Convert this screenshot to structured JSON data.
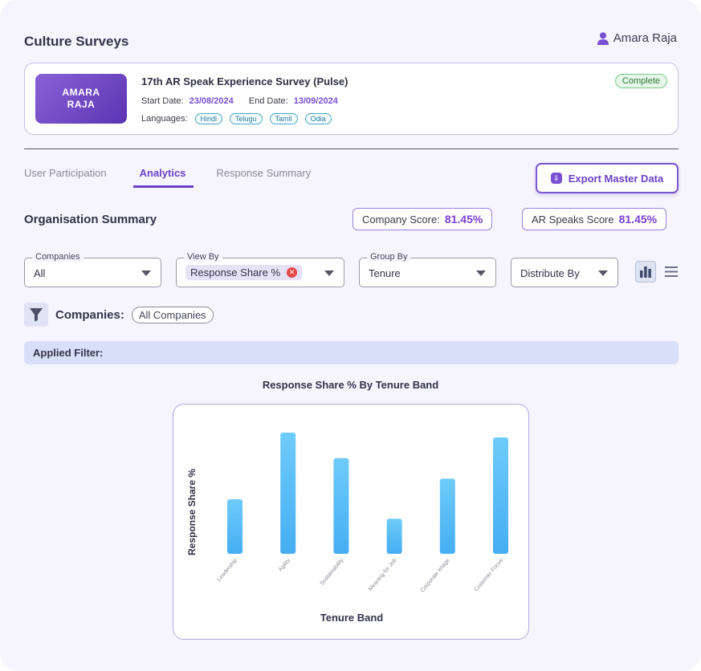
{
  "page": {
    "title": "Culture Surveys"
  },
  "user": {
    "name": "Amara Raja",
    "icon": "person-icon"
  },
  "survey": {
    "logo_line1": "AMARA",
    "logo_line2": "RAJA",
    "name": "17th AR Speak Experience Survey (Pulse)",
    "start_label": "Start Date:",
    "start_date": "23/08/2024",
    "end_label": "End Date:",
    "end_date": "13/09/2024",
    "languages_label": "Languages:",
    "languages": [
      "Hindi",
      "Telugu",
      "Tamil",
      "Odia"
    ],
    "status": "Complete"
  },
  "tabs": [
    {
      "label": "User Participation",
      "active": false
    },
    {
      "label": "Analytics",
      "active": true
    },
    {
      "label": "Response Summary",
      "active": false
    }
  ],
  "export_button": {
    "label": "Export Master Data",
    "icon": "download-icon"
  },
  "summary": {
    "title": "Organisation Summary",
    "company_score_label": "Company Score:",
    "company_score": "81.45%",
    "ar_score_label": "AR Speaks Score",
    "ar_score": "81.45%"
  },
  "filters": {
    "companies": {
      "label": "Companies",
      "value": "All"
    },
    "view_by": {
      "label": "View By",
      "value": "Response Share %"
    },
    "group_by": {
      "label": "Group By",
      "value": "Tenure"
    },
    "distribute_by": {
      "value": "Distribute By"
    }
  },
  "filter_row": {
    "label": "Companies:",
    "value": "All Companies"
  },
  "applied_filter": {
    "label": "Applied Filter:"
  },
  "colors": {
    "accent": "#6b3fc8",
    "bar_top": "#6fcbfb",
    "bar_bottom": "#45aef2"
  },
  "chart_data": {
    "type": "bar",
    "title": "Response Share % By Tenure Band",
    "xlabel": "Tenure Band",
    "ylabel": "Response Share %",
    "categories": [
      "Leadership",
      "Agility",
      "Sustainability",
      "Meaning for Job",
      "Corporate Image",
      "Customer Focus"
    ],
    "values": [
      45,
      100,
      79,
      29,
      62,
      96
    ],
    "ylim": [
      0,
      100
    ],
    "grid": false
  }
}
